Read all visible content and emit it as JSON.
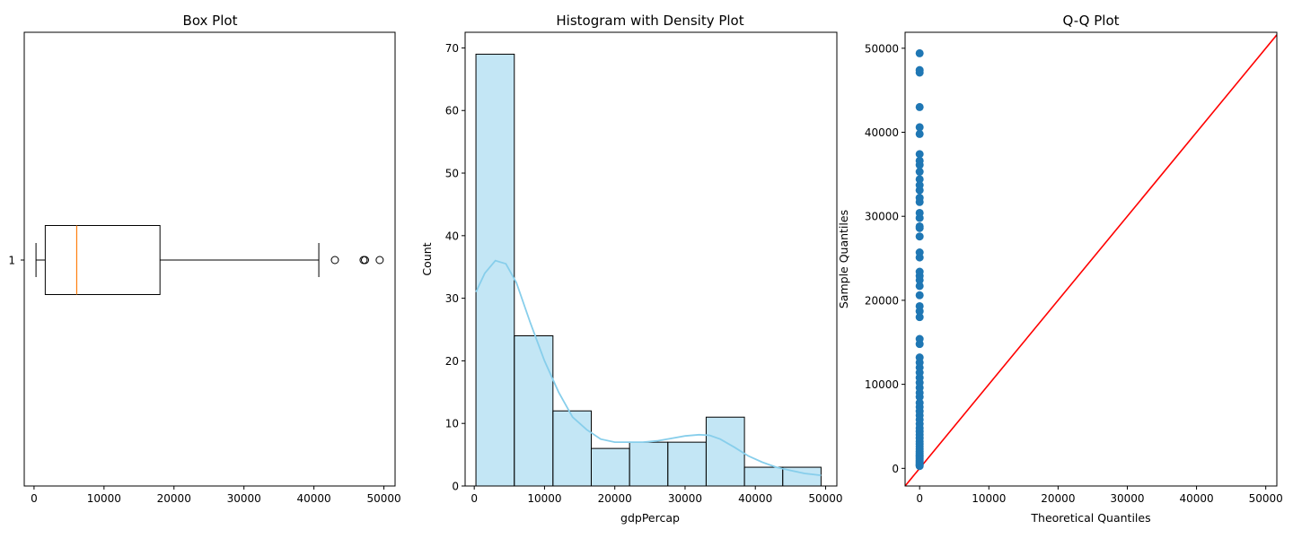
{
  "colors": {
    "box_median": "#ff7f0e",
    "hist_fill": "#87ceeb",
    "kde_line": "#87ceeb",
    "qq_points": "#1f77b4",
    "qq_line": "#ff0000",
    "axis": "#000000"
  },
  "chart_data": [
    {
      "type": "box",
      "title": "Box Plot",
      "orientation": "horizontal",
      "xlim": [
        -1400,
        51600
      ],
      "xticks": [
        0,
        10000,
        20000,
        30000,
        40000,
        50000
      ],
      "xticklabels": [
        "0",
        "10000",
        "20000",
        "30000",
        "40000",
        "50000"
      ],
      "ytick_label": "1",
      "stats": {
        "whisker_low": 280,
        "q1": 1600,
        "median": 6100,
        "q3": 18000,
        "whisker_high": 40700
      },
      "outliers": [
        43000,
        47100,
        47300,
        49400
      ],
      "grid": false
    },
    {
      "type": "bar",
      "title": "Histogram with Density Plot",
      "xlabel": "gdpPercap",
      "ylabel": "Count",
      "xlim": [
        -1300,
        51600
      ],
      "ylim": [
        0,
        72.5
      ],
      "xticks": [
        0,
        10000,
        20000,
        30000,
        40000,
        50000
      ],
      "xticklabels": [
        "0",
        "10000",
        "20000",
        "30000",
        "40000",
        "50000"
      ],
      "yticks": [
        0,
        10,
        20,
        30,
        40,
        50,
        60,
        70
      ],
      "yticklabels": [
        "0",
        "10",
        "20",
        "30",
        "40",
        "50",
        "60",
        "70"
      ],
      "bin_edges": [
        240,
        5700,
        11200,
        16650,
        22100,
        27550,
        33000,
        38450,
        43900,
        49350
      ],
      "counts": [
        69,
        24,
        12,
        6,
        7,
        7,
        11,
        3,
        3
      ],
      "kde": {
        "x": [
          240,
          1500,
          3000,
          4500,
          6000,
          8000,
          10000,
          12000,
          14000,
          16000,
          18000,
          20000,
          22000,
          24000,
          26000,
          28000,
          30000,
          32000,
          33500,
          35000,
          37000,
          39000,
          41000,
          43000,
          45000,
          47000,
          49350
        ],
        "y": [
          31,
          34,
          36,
          35.5,
          32.5,
          26,
          20,
          15,
          11,
          9,
          7.5,
          7,
          7,
          7,
          7.2,
          7.6,
          8,
          8.2,
          8.1,
          7.5,
          6.2,
          4.8,
          3.8,
          3,
          2.5,
          2,
          1.7
        ]
      },
      "grid": false
    },
    {
      "type": "scatter",
      "title": "Q-Q Plot",
      "xlabel": "Theoretical Quantiles",
      "ylabel": "Sample Quantiles",
      "xlim": [
        -2100,
        51600
      ],
      "ylim": [
        -2100,
        51900
      ],
      "xticks": [
        0,
        10000,
        20000,
        30000,
        40000,
        50000
      ],
      "xticklabels": [
        "0",
        "10000",
        "20000",
        "30000",
        "40000",
        "50000"
      ],
      "yticks": [
        0,
        10000,
        20000,
        30000,
        40000,
        50000
      ],
      "yticklabels": [
        "0",
        "10000",
        "20000",
        "30000",
        "40000",
        "50000"
      ],
      "theoretical_quantiles_x": 0,
      "sample_quantiles": [
        280,
        400,
        550,
        700,
        850,
        1000,
        1200,
        1400,
        1600,
        1800,
        2000,
        2300,
        2600,
        2900,
        3200,
        3600,
        4000,
        4400,
        4800,
        5300,
        5800,
        6300,
        6800,
        7300,
        7800,
        8500,
        9000,
        9600,
        10200,
        10800,
        11400,
        12000,
        12600,
        13200,
        14800,
        15400,
        18000,
        18700,
        19300,
        20600,
        21700,
        22400,
        22900,
        23400,
        25100,
        25700,
        27600,
        28600,
        28800,
        29800,
        30400,
        31700,
        32200,
        33100,
        33700,
        34400,
        35300,
        36100,
        36600,
        37400,
        39800,
        40600,
        43000,
        47100,
        47400,
        49400
      ],
      "reference_line": {
        "x": [
          -2100,
          51600
        ],
        "y": [
          -2100,
          51600
        ]
      },
      "grid": false
    }
  ]
}
